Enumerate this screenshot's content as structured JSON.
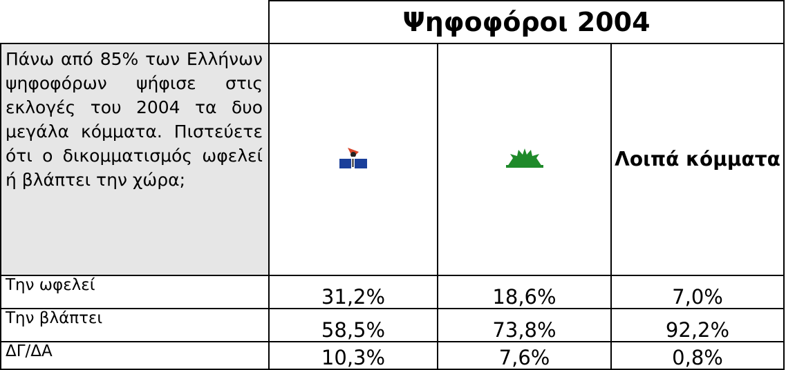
{
  "table": {
    "header": "Ψηφοφόροι 2004",
    "question": "Πάνω από 85% των Ελλήνων ψηφοφόρων ψήφισε στις εκλογές του 2004 τα δυο μεγάλα κόμματα. Πιστεύετε ότι ο δικομματισμός ωφελεί ή βλάπτει την χώρα;",
    "other_parties": "Λοιπά κόμματα",
    "rows": [
      [
        "Την ωφελεί",
        "31,2%",
        "18,6%",
        "7,0%"
      ],
      [
        "Την βλάπτει",
        "58,5%",
        "73,8%",
        "92,2%"
      ],
      [
        "ΔΓ/ΔΑ",
        "10,3%",
        "7,6%",
        "0,8%"
      ]
    ]
  }
}
